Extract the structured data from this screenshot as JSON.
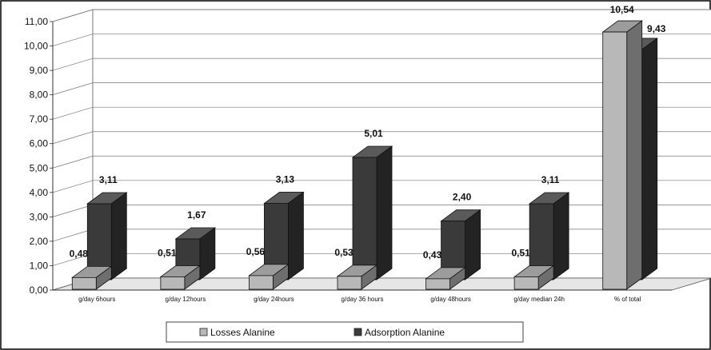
{
  "chart_data": {
    "type": "bar",
    "title": "",
    "xlabel": "",
    "ylabel": "",
    "ylim": [
      0,
      11
    ],
    "y_ticks": [
      "0,00",
      "1,00",
      "2,00",
      "3,00",
      "4,00",
      "5,00",
      "6,00",
      "7,00",
      "8,00",
      "9,00",
      "10,00",
      "11,00"
    ],
    "categories": [
      "g/day 6hours",
      "g/day 12hours",
      "g/day 24hours",
      "g/day 36 hours",
      "g/day 48hours",
      "g/day median 24h",
      "% of total"
    ],
    "series": [
      {
        "name": "Losses Alanine",
        "values": [
          0.48,
          0.51,
          0.56,
          0.53,
          0.43,
          0.51,
          10.54
        ],
        "labels": [
          "0,48",
          "0,51",
          "0,56",
          "0,53",
          "0,43",
          "0,51",
          "10,54"
        ],
        "color": "#b8b8b8"
      },
      {
        "name": "Adsorption Alanine",
        "values": [
          3.11,
          1.67,
          3.13,
          5.01,
          2.4,
          3.11,
          9.43
        ],
        "labels": [
          "3,11",
          "1,67",
          "3,13",
          "5,01",
          "2,40",
          "3,11",
          "9,43"
        ],
        "color": "#3a3a3a"
      }
    ],
    "grid": true,
    "legend_position": "bottom",
    "style": "3d-column"
  }
}
